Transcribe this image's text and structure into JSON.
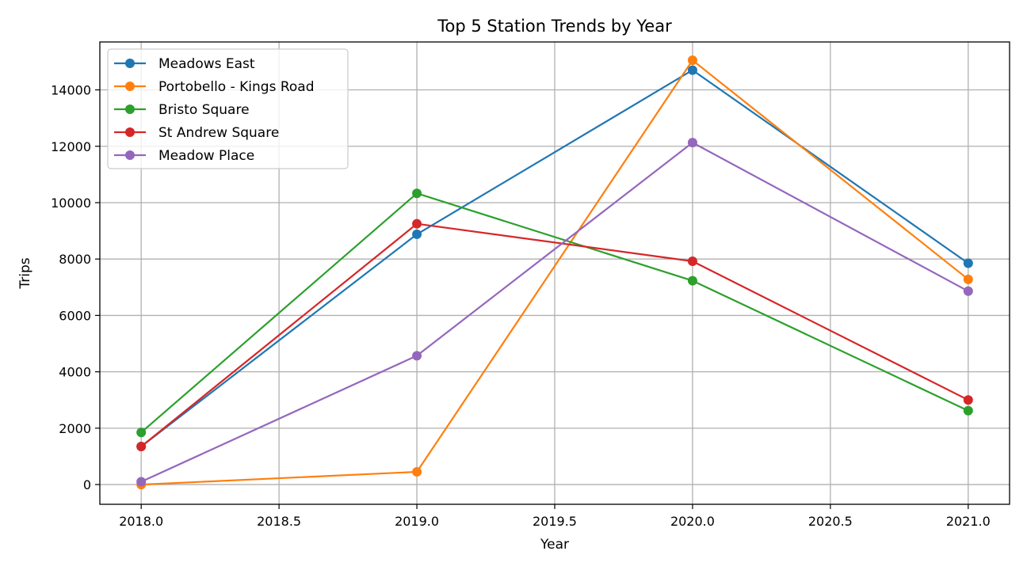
{
  "chart_data": {
    "type": "line",
    "title": "Top 5 Station Trends by Year",
    "xlabel": "Year",
    "ylabel": "Trips",
    "x": [
      2018,
      2019,
      2020,
      2021
    ],
    "xlim": [
      2017.85,
      2021.15
    ],
    "ylim": [
      -700,
      15700
    ],
    "xticks": [
      2018.0,
      2018.5,
      2019.0,
      2019.5,
      2020.0,
      2020.5,
      2021.0
    ],
    "xtick_labels": [
      "2018.0",
      "2018.5",
      "2019.0",
      "2019.5",
      "2020.0",
      "2020.5",
      "2021.0"
    ],
    "yticks": [
      0,
      2000,
      4000,
      6000,
      8000,
      10000,
      12000,
      14000
    ],
    "ytick_labels": [
      "0",
      "2000",
      "4000",
      "6000",
      "8000",
      "10000",
      "12000",
      "14000"
    ],
    "grid": true,
    "legend_position": "top-left",
    "series": [
      {
        "name": "Meadows East",
        "color": "#1f77b4",
        "values": [
          1350,
          8880,
          14700,
          7850
        ]
      },
      {
        "name": "Portobello - Kings Road",
        "color": "#ff7f0e",
        "values": [
          0,
          450,
          15050,
          7280
        ]
      },
      {
        "name": "Bristo Square",
        "color": "#2ca02c",
        "values": [
          1850,
          10330,
          7230,
          2620
        ]
      },
      {
        "name": "St Andrew Square",
        "color": "#d62728",
        "values": [
          1350,
          9250,
          7920,
          3000
        ]
      },
      {
        "name": "Meadow Place",
        "color": "#9467bd",
        "values": [
          100,
          4570,
          12130,
          6860
        ]
      }
    ]
  }
}
